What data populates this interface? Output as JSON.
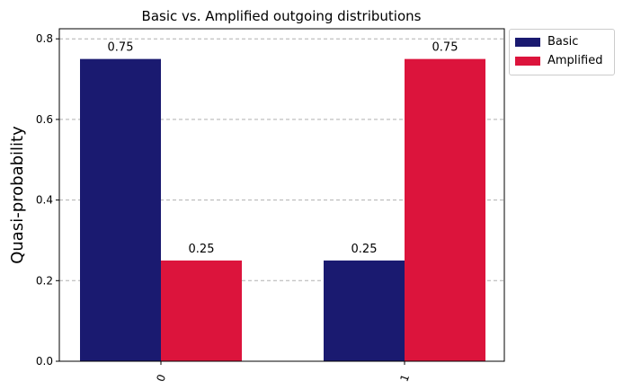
{
  "colors": {
    "basic": "#1a1a70",
    "amplified": "#dc143c",
    "grid": "#b0b0b0"
  },
  "chart_data": {
    "type": "bar",
    "title": "Basic vs. Amplified outgoing distributions",
    "xlabel": "",
    "ylabel": "Quasi-probability",
    "categories": [
      "0",
      "1"
    ],
    "series": [
      {
        "name": "Basic",
        "values": [
          0.75,
          0.25
        ],
        "labels": [
          "0.75",
          "0.25"
        ]
      },
      {
        "name": "Amplified",
        "values": [
          0.25,
          0.75
        ],
        "labels": [
          "0.25",
          "0.75"
        ]
      }
    ],
    "ylim": [
      0,
      0.825
    ],
    "yticks": [
      "0.0",
      "0.2",
      "0.4",
      "0.6",
      "0.8"
    ],
    "grid": "horizontal dashed",
    "legend": "outside top-right"
  }
}
